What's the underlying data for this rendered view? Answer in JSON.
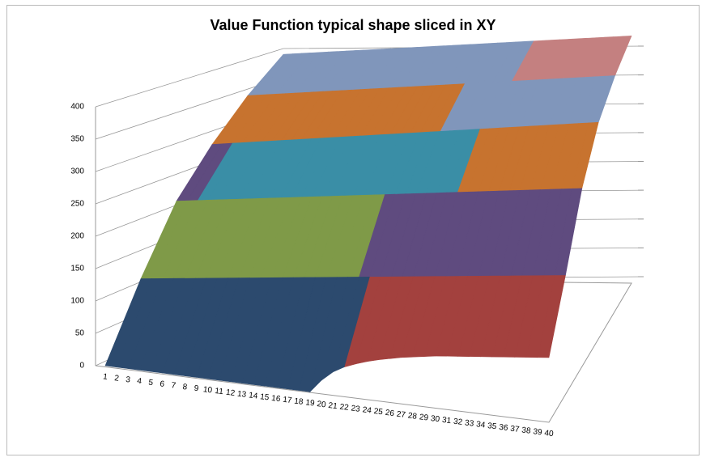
{
  "chart_data": {
    "type": "surface",
    "title": "Value Function typical shape sliced in XY",
    "categories": [
      "1",
      "2",
      "3",
      "4",
      "5",
      "6",
      "7",
      "8",
      "9",
      "10",
      "11",
      "12",
      "13",
      "14",
      "15",
      "16",
      "17",
      "18",
      "19",
      "20",
      "21",
      "22",
      "23",
      "24",
      "25",
      "26",
      "27",
      "28",
      "29",
      "30",
      "31",
      "32",
      "33",
      "34",
      "35",
      "36",
      "37",
      "38",
      "39",
      "40"
    ],
    "z": [
      [
        0,
        0,
        0,
        0,
        0,
        0,
        0,
        0,
        0,
        0,
        0,
        0,
        0,
        0,
        0,
        0,
        0,
        0,
        0,
        20,
        35,
        45,
        52,
        58,
        63,
        67,
        71,
        74,
        77,
        80,
        82,
        84,
        86,
        88,
        90,
        92,
        94,
        96,
        98,
        100
      ],
      [
        110,
        112,
        114,
        116,
        118,
        120,
        122,
        124,
        126,
        128,
        130,
        132,
        134,
        136,
        138,
        140,
        142,
        144,
        146,
        148,
        150,
        152,
        154,
        156,
        158,
        160,
        162,
        164,
        166,
        168,
        170,
        172,
        174,
        176,
        178,
        180,
        182,
        184,
        186,
        188
      ],
      [
        210,
        212,
        214,
        216,
        218,
        220,
        222,
        224,
        226,
        228,
        230,
        232,
        234,
        236,
        238,
        240,
        242,
        244,
        246,
        248,
        250,
        252,
        254,
        256,
        258,
        260,
        262,
        264,
        266,
        268,
        270,
        272,
        274,
        276,
        278,
        280,
        282,
        284,
        286,
        288
      ],
      [
        280,
        282,
        284,
        286,
        288,
        290,
        292,
        294,
        296,
        298,
        300,
        302,
        304,
        306,
        308,
        310,
        312,
        314,
        316,
        318,
        320,
        322,
        324,
        326,
        328,
        330,
        332,
        334,
        336,
        338,
        340,
        342,
        344,
        346,
        348,
        350,
        352,
        354,
        356,
        358
      ],
      [
        340,
        341.5,
        343,
        344.5,
        346,
        347.5,
        349,
        350.5,
        352,
        353.5,
        355,
        356.5,
        358,
        359.5,
        361,
        362.5,
        364,
        365.5,
        367,
        368.5,
        370,
        371.5,
        373,
        374.5,
        376,
        377.5,
        379,
        380.5,
        382,
        383.5,
        385,
        386.5,
        388,
        389.5,
        391,
        392.5,
        394,
        395.5,
        397,
        398.5
      ],
      [
        390,
        391,
        392,
        393,
        394,
        395,
        396,
        397,
        398,
        399,
        400,
        401,
        402,
        403,
        404,
        405,
        406,
        407,
        408,
        409,
        410,
        411,
        412,
        413,
        414,
        415,
        416,
        417,
        418,
        419,
        420,
        421,
        422,
        423,
        424,
        425,
        426,
        427,
        428,
        429
      ]
    ],
    "ylim": [
      0,
      400
    ],
    "yticks": [
      0,
      50,
      100,
      150,
      200,
      250,
      300,
      350,
      400
    ],
    "grid": true,
    "band_colors": [
      "#4a7fbf",
      "#2c4a6e",
      "#a3413e",
      "#7f9a48",
      "#5f4b7f",
      "#3a8ea6",
      "#c7732f",
      "#8096bb",
      "#c48080"
    ]
  }
}
